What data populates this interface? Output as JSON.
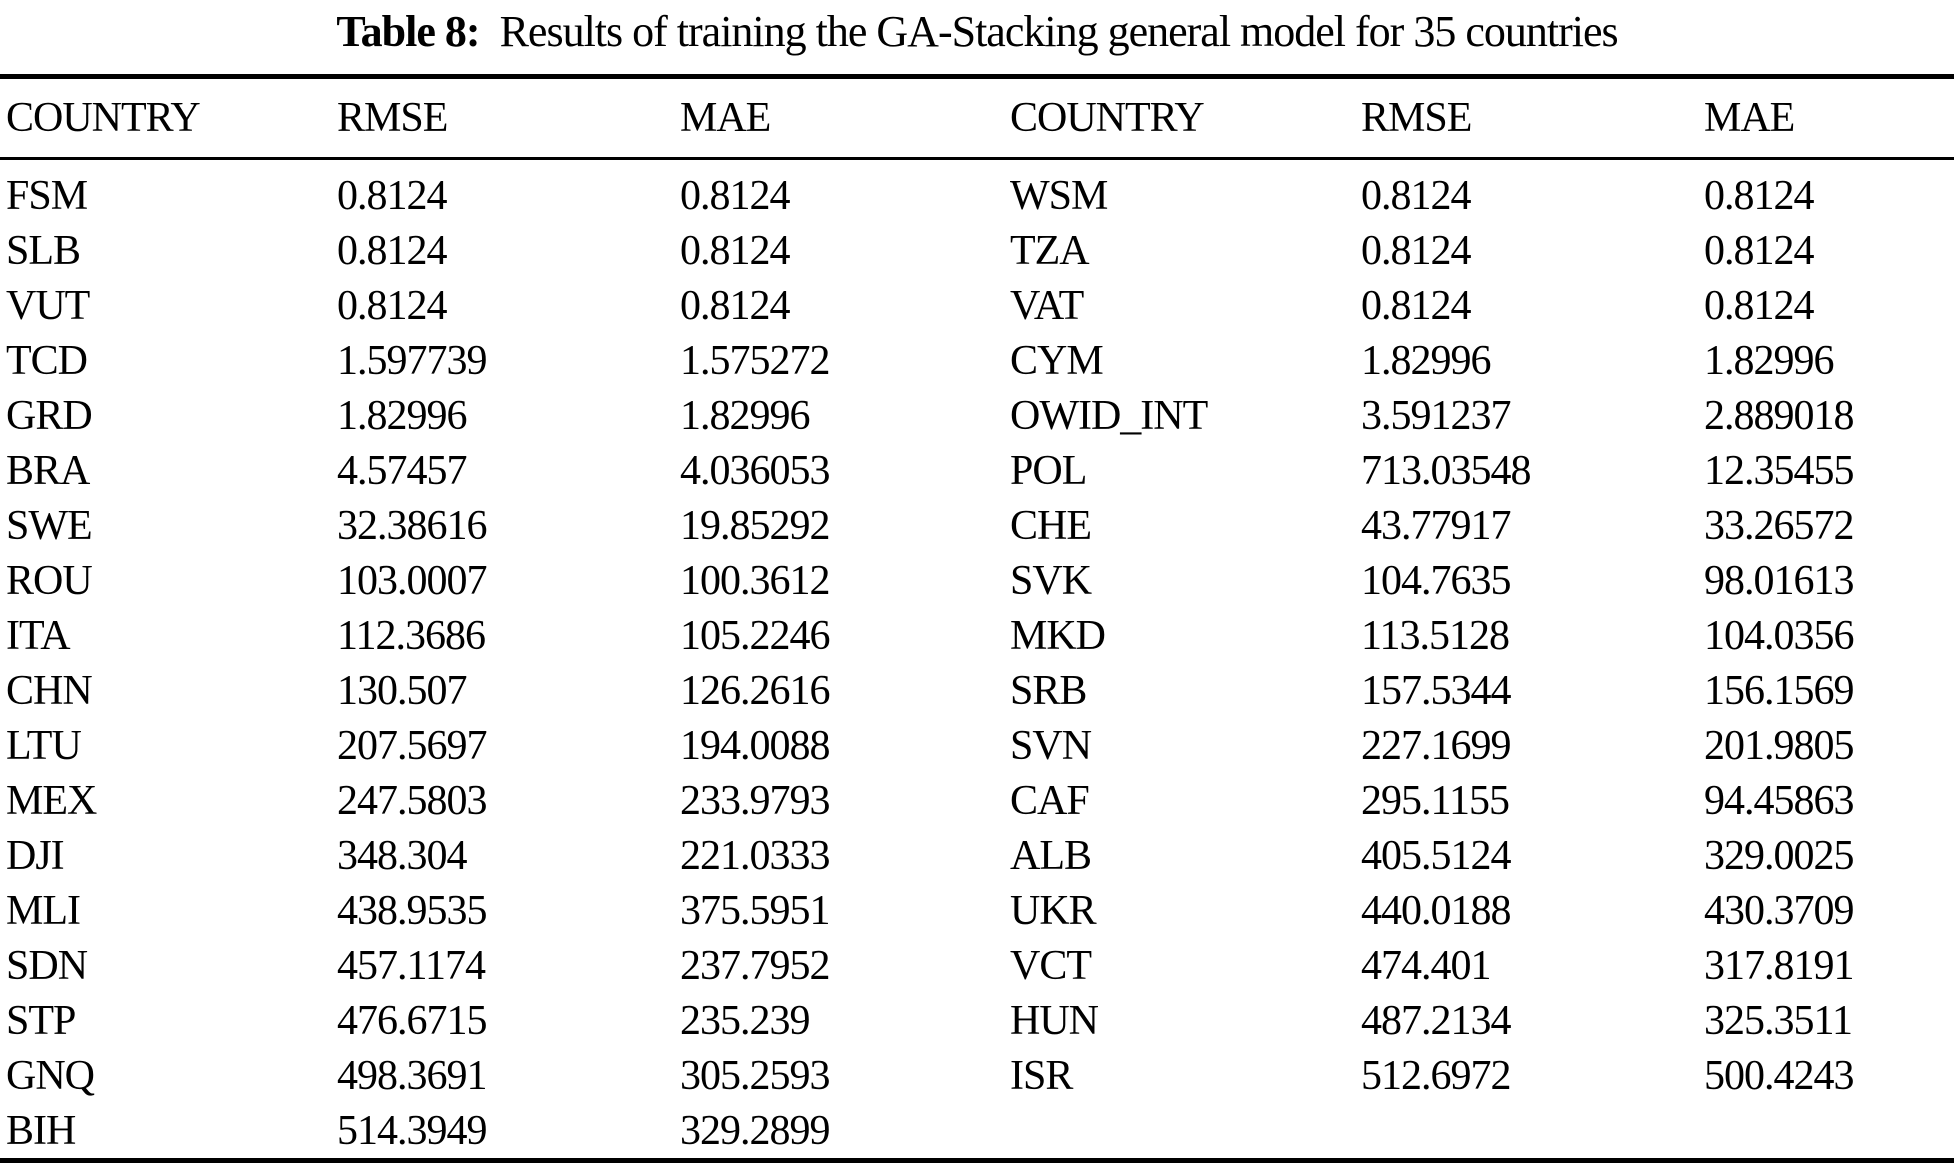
{
  "caption": {
    "label": "Table 8:",
    "text": "Results of training the GA-Stacking general model for 35 countries"
  },
  "table": {
    "headers": [
      "COUNTRY",
      "RMSE",
      "MAE",
      "COUNTRY",
      "RMSE",
      "MAE"
    ],
    "rows": [
      [
        "FSM",
        "0.8124",
        "0.8124",
        "WSM",
        "0.8124",
        "0.8124"
      ],
      [
        "SLB",
        "0.8124",
        "0.8124",
        "TZA",
        "0.8124",
        "0.8124"
      ],
      [
        "VUT",
        "0.8124",
        "0.8124",
        "VAT",
        "0.8124",
        "0.8124"
      ],
      [
        "TCD",
        "1.597739",
        "1.575272",
        "CYM",
        "1.82996",
        "1.82996"
      ],
      [
        "GRD",
        "1.82996",
        "1.82996",
        "OWID_INT",
        "3.591237",
        "2.889018"
      ],
      [
        "BRA",
        "4.57457",
        "4.036053",
        "POL",
        "713.03548",
        "12.35455"
      ],
      [
        "SWE",
        "32.38616",
        "19.85292",
        "CHE",
        "43.77917",
        "33.26572"
      ],
      [
        "ROU",
        "103.0007",
        "100.3612",
        "SVK",
        "104.7635",
        "98.01613"
      ],
      [
        "ITA",
        "112.3686",
        "105.2246",
        "MKD",
        "113.5128",
        "104.0356"
      ],
      [
        "CHN",
        "130.507",
        "126.2616",
        "SRB",
        "157.5344",
        "156.1569"
      ],
      [
        "LTU",
        "207.5697",
        "194.0088",
        "SVN",
        "227.1699",
        "201.9805"
      ],
      [
        "MEX",
        "247.5803",
        "233.9793",
        "CAF",
        "295.1155",
        "94.45863"
      ],
      [
        "DJI",
        "348.304",
        "221.0333",
        "ALB",
        "405.5124",
        "329.0025"
      ],
      [
        "MLI",
        "438.9535",
        "375.5951",
        "UKR",
        "440.0188",
        "430.3709"
      ],
      [
        "SDN",
        "457.1174",
        "237.7952",
        "VCT",
        "474.401",
        "317.8191"
      ],
      [
        "STP",
        "476.6715",
        "235.239",
        "HUN",
        "487.2134",
        "325.3511"
      ],
      [
        "GNQ",
        "498.3691",
        "305.2593",
        "ISR",
        "512.6972",
        "500.4243"
      ],
      [
        "BIH",
        "514.3949",
        "329.2899",
        "",
        "",
        ""
      ]
    ]
  },
  "chart_data": {
    "type": "table",
    "title": "Table 8: Results of training the GA-Stacking general model for 35 countries",
    "columns": [
      "COUNTRY",
      "RMSE",
      "MAE"
    ],
    "records": [
      {
        "country": "FSM",
        "rmse": 0.8124,
        "mae": 0.8124
      },
      {
        "country": "SLB",
        "rmse": 0.8124,
        "mae": 0.8124
      },
      {
        "country": "VUT",
        "rmse": 0.8124,
        "mae": 0.8124
      },
      {
        "country": "TCD",
        "rmse": 1.597739,
        "mae": 1.575272
      },
      {
        "country": "GRD",
        "rmse": 1.82996,
        "mae": 1.82996
      },
      {
        "country": "BRA",
        "rmse": 4.57457,
        "mae": 4.036053
      },
      {
        "country": "SWE",
        "rmse": 32.38616,
        "mae": 19.85292
      },
      {
        "country": "ROU",
        "rmse": 103.0007,
        "mae": 100.3612
      },
      {
        "country": "ITA",
        "rmse": 112.3686,
        "mae": 105.2246
      },
      {
        "country": "CHN",
        "rmse": 130.507,
        "mae": 126.2616
      },
      {
        "country": "LTU",
        "rmse": 207.5697,
        "mae": 194.0088
      },
      {
        "country": "MEX",
        "rmse": 247.5803,
        "mae": 233.9793
      },
      {
        "country": "DJI",
        "rmse": 348.304,
        "mae": 221.0333
      },
      {
        "country": "MLI",
        "rmse": 438.9535,
        "mae": 375.5951
      },
      {
        "country": "SDN",
        "rmse": 457.1174,
        "mae": 237.7952
      },
      {
        "country": "STP",
        "rmse": 476.6715,
        "mae": 235.239
      },
      {
        "country": "GNQ",
        "rmse": 498.3691,
        "mae": 305.2593
      },
      {
        "country": "BIH",
        "rmse": 514.3949,
        "mae": 329.2899
      },
      {
        "country": "WSM",
        "rmse": 0.8124,
        "mae": 0.8124
      },
      {
        "country": "TZA",
        "rmse": 0.8124,
        "mae": 0.8124
      },
      {
        "country": "VAT",
        "rmse": 0.8124,
        "mae": 0.8124
      },
      {
        "country": "CYM",
        "rmse": 1.82996,
        "mae": 1.82996
      },
      {
        "country": "OWID_INT",
        "rmse": 3.591237,
        "mae": 2.889018
      },
      {
        "country": "POL",
        "rmse": 713.03548,
        "mae": 12.35455
      },
      {
        "country": "CHE",
        "rmse": 43.77917,
        "mae": 33.26572
      },
      {
        "country": "SVK",
        "rmse": 104.7635,
        "mae": 98.01613
      },
      {
        "country": "MKD",
        "rmse": 113.5128,
        "mae": 104.0356
      },
      {
        "country": "SRB",
        "rmse": 157.5344,
        "mae": 156.1569
      },
      {
        "country": "SVN",
        "rmse": 227.1699,
        "mae": 201.9805
      },
      {
        "country": "CAF",
        "rmse": 295.1155,
        "mae": 94.45863
      },
      {
        "country": "ALB",
        "rmse": 405.5124,
        "mae": 329.0025
      },
      {
        "country": "UKR",
        "rmse": 440.0188,
        "mae": 430.3709
      },
      {
        "country": "VCT",
        "rmse": 474.401,
        "mae": 317.8191
      },
      {
        "country": "HUN",
        "rmse": 487.2134,
        "mae": 325.3511
      },
      {
        "country": "ISR",
        "rmse": 512.6972,
        "mae": 500.4243
      }
    ]
  }
}
